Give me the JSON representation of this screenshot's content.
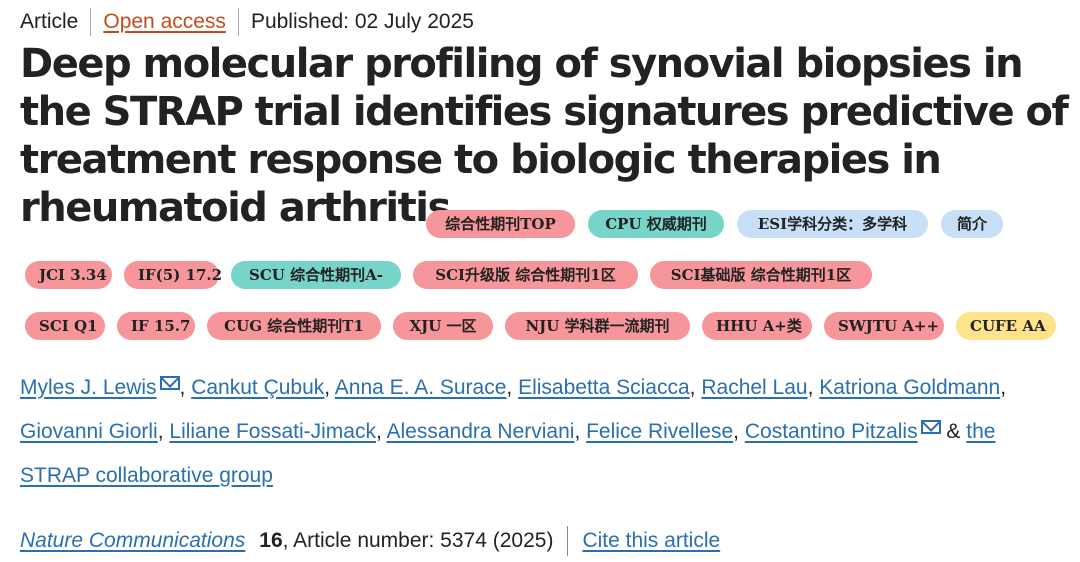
{
  "header": {
    "type": "Article",
    "access": "Open access",
    "published": "Published: 02 July 2025"
  },
  "title": "Deep molecular profiling of synovial biopsies in the STRAP trial identifies signatures predictive of treatment response to biologic therapies in rheumatoid arthritis",
  "tags": [
    {
      "label": "综合性期刊TOP",
      "color": "#f6959a"
    },
    {
      "label": "CPU 权威期刊",
      "color": "#77d4c9"
    },
    {
      "label": "ESI学科分类：多学科",
      "color": "#c8e0f7"
    },
    {
      "label": "简介",
      "color": "#c8e0f7"
    },
    {
      "label": "JCI 3.34",
      "color": "#f6959a"
    },
    {
      "label": "IF(5) 17.2",
      "color": "#f6959a"
    },
    {
      "label": "SCU 综合性期刊A-",
      "color": "#77d4c9"
    },
    {
      "label": "SCI升级版 综合性期刊1区",
      "color": "#f6959a"
    },
    {
      "label": "SCI基础版 综合性期刊1区",
      "color": "#f6959a"
    },
    {
      "label": "SCI Q1",
      "color": "#f6959a"
    },
    {
      "label": "IF 15.7",
      "color": "#f6959a"
    },
    {
      "label": "CUG 综合性期刊T1",
      "color": "#f6959a"
    },
    {
      "label": "XJU 一区",
      "color": "#f6959a"
    },
    {
      "label": "NJU 学科群一流期刊",
      "color": "#f6959a"
    },
    {
      "label": "HHU A+类",
      "color": "#f6959a"
    },
    {
      "label": "SWJTU A++",
      "color": "#f6959a"
    },
    {
      "label": "CUFE AA",
      "color": "#ffe38a"
    }
  ],
  "authors": [
    "Myles J. Lewis",
    "Cankut Çubuk",
    "Anna E. A. Surace",
    "Elisabetta Sciacca",
    "Rachel Lau",
    "Katriona Goldmann",
    "Giovanni Giorli",
    "Liliane Fossati-Jimack",
    "Alessandra Nerviani",
    "Felice Rivellese",
    "Costantino Pitzalis",
    "the STRAP collaborative group"
  ],
  "journal": {
    "name": "Nature Communications",
    "volume": "16",
    "article_number": ", Article number: 5374 (2025)",
    "cite": "Cite this article"
  }
}
